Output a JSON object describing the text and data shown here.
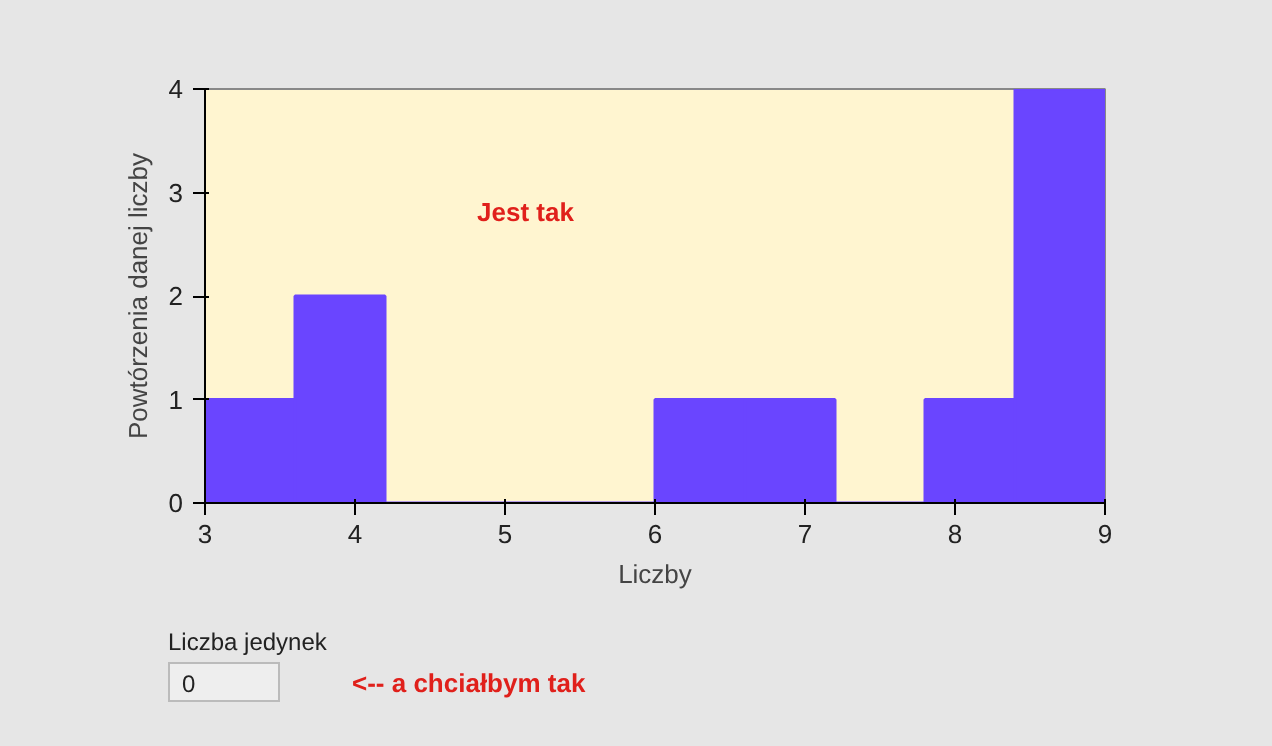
{
  "chart_data": {
    "type": "histogram",
    "xlabel": "Liczby",
    "ylabel": "Powtórzenia danej liczby",
    "bins": [
      3,
      3.6,
      4.2,
      4.8,
      5.4,
      6,
      6.6,
      7.2,
      7.8,
      8.4,
      9
    ],
    "values": [
      1,
      2,
      0,
      0,
      0,
      1,
      1,
      0,
      1,
      4
    ],
    "color": "#6a45ff",
    "xlim": [
      3,
      9
    ],
    "ylim": [
      0,
      4
    ],
    "xticks": [
      3,
      4,
      5,
      6,
      7,
      8,
      9
    ],
    "yticks": [
      0,
      1,
      2,
      3,
      4
    ],
    "grid": false,
    "annotations": [
      "Jest tak",
      "Liczba jedynek",
      "0",
      "<-- a chciałbym tak"
    ]
  }
}
